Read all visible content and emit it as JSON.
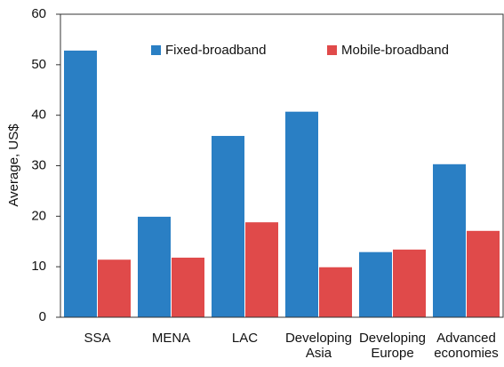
{
  "chart_data": {
    "type": "bar",
    "y_label": "Average, US$",
    "categories": [
      "SSA",
      "MENA",
      "LAC",
      "Developing Asia",
      "Developing Europe",
      "Advanced economies"
    ],
    "series": [
      {
        "name": "Fixed-broadband",
        "color": "#2a7fc4",
        "values": [
          52.8,
          19.9,
          35.9,
          40.7,
          12.9,
          30.3
        ]
      },
      {
        "name": "Mobile-broadband",
        "color": "#e04a4a",
        "values": [
          11.4,
          11.8,
          18.8,
          9.9,
          13.4,
          17.1
        ]
      }
    ],
    "ylim": [
      0,
      60
    ],
    "yticks": [
      0,
      10,
      20,
      30,
      40,
      50,
      60
    ],
    "legend": "top",
    "grid": false
  }
}
